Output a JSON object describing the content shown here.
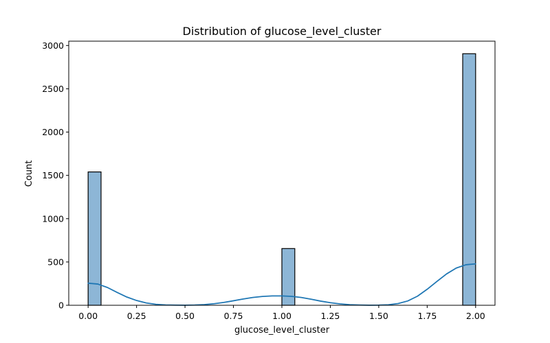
{
  "chart_data": {
    "type": "bar",
    "title": "Distribution of glucose_level_cluster",
    "xlabel": "glucose_level_cluster",
    "ylabel": "Count",
    "xlim": [
      -0.1,
      2.1
    ],
    "ylim": [
      0,
      3050
    ],
    "xticks": [
      0.0,
      0.25,
      0.5,
      0.75,
      1.0,
      1.25,
      1.5,
      1.75,
      2.0
    ],
    "xtick_labels": [
      "0.00",
      "0.25",
      "0.50",
      "0.75",
      "1.00",
      "1.25",
      "1.50",
      "1.75",
      "2.00"
    ],
    "yticks": [
      0,
      500,
      1000,
      1500,
      2000,
      2500,
      3000
    ],
    "ytick_labels": [
      "0",
      "500",
      "1000",
      "1500",
      "2000",
      "2500",
      "3000"
    ],
    "bins": [
      {
        "x0": 0.0,
        "x1": 0.0667,
        "count": 1540
      },
      {
        "x0": 0.9333,
        "x1": 1.0,
        "count": 0
      },
      {
        "x0": 1.0,
        "x1": 1.0667,
        "count": 655
      },
      {
        "x0": 1.9333,
        "x1": 2.0,
        "count": 2905
      }
    ],
    "kde": {
      "x": [
        0.0,
        0.05,
        0.1,
        0.15,
        0.2,
        0.25,
        0.3,
        0.35,
        0.4,
        0.45,
        0.5,
        0.55,
        0.6,
        0.65,
        0.7,
        0.75,
        0.8,
        0.85,
        0.9,
        0.95,
        1.0,
        1.05,
        1.1,
        1.15,
        1.2,
        1.25,
        1.3,
        1.35,
        1.4,
        1.45,
        1.5,
        1.55,
        1.6,
        1.65,
        1.7,
        1.75,
        1.8,
        1.85,
        1.9,
        1.95,
        2.0
      ],
      "y": [
        255,
        245,
        205,
        148,
        95,
        55,
        27,
        11,
        4,
        2,
        1,
        3,
        8,
        18,
        33,
        52,
        72,
        90,
        102,
        108,
        108,
        103,
        90,
        70,
        48,
        30,
        16,
        7,
        3,
        1,
        2,
        6,
        20,
        50,
        105,
        185,
        275,
        362,
        430,
        468,
        478
      ]
    },
    "bar_color": "#8db6d6",
    "bar_edge_color": "#000000",
    "kde_color": "#1f77b4",
    "grid": false,
    "legend": "none"
  }
}
